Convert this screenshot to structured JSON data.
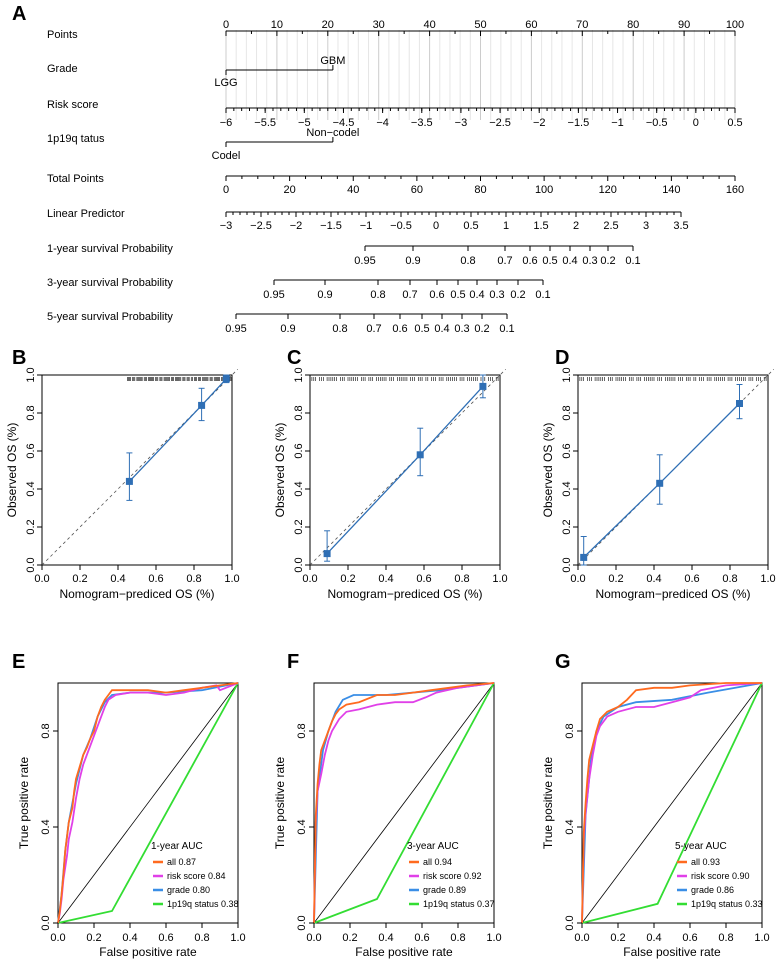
{
  "panel_labels": [
    "A",
    "B",
    "C",
    "D",
    "E",
    "F",
    "G"
  ],
  "chart_data": [
    {
      "type": "nomogram",
      "panel": "A",
      "rows": [
        {
          "label": "Points",
          "ticks": [
            "0",
            "10",
            "20",
            "30",
            "40",
            "50",
            "60",
            "70",
            "80",
            "90",
            "100"
          ]
        },
        {
          "label": "Grade",
          "levels": [
            "LGG",
            "GBM"
          ]
        },
        {
          "label": "Risk score",
          "ticks": [
            "-6",
            "-5.5",
            "-5",
            "-4.5",
            "-4",
            "-3.5",
            "-3",
            "-2.5",
            "-2",
            "-1.5",
            "-1",
            "-0.5",
            "0",
            "0.5"
          ]
        },
        {
          "label": "1p19q tatus",
          "levels": [
            "Codel",
            "Non−codel"
          ]
        },
        {
          "label": "Total Points",
          "ticks": [
            "0",
            "20",
            "40",
            "60",
            "80",
            "100",
            "120",
            "140",
            "160"
          ]
        },
        {
          "label": "Linear Predictor",
          "ticks": [
            "-3",
            "-2.5",
            "-2",
            "-1.5",
            "-1",
            "-0.5",
            "0",
            "0.5",
            "1",
            "1.5",
            "2",
            "2.5",
            "3",
            "3.5"
          ]
        },
        {
          "label": "1-year survival Probability",
          "ticks": [
            "0.95",
            "0.9",
            "0.8",
            "0.7",
            "0.6",
            "0.5",
            "0.4",
            "0.3",
            "0.2",
            "0.1"
          ]
        },
        {
          "label": "3-year survival Probability",
          "ticks": [
            "0.95",
            "0.9",
            "0.8",
            "0.7",
            "0.6",
            "0.5",
            "0.4",
            "0.3",
            "0.2",
            "0.1"
          ]
        },
        {
          "label": "5-year survival Probability",
          "ticks": [
            "0.95",
            "0.9",
            "0.8",
            "0.7",
            "0.6",
            "0.5",
            "0.4",
            "0.3",
            "0.2",
            "0.1"
          ]
        }
      ]
    },
    {
      "type": "calibration",
      "panel": "B",
      "xlabel": "Nomogram−prediced OS (%)",
      "ylabel": "Observed OS (%)",
      "xlim": [
        0,
        1
      ],
      "ylim": [
        0,
        1
      ],
      "ticks": [
        "0.0",
        "0.2",
        "0.4",
        "0.6",
        "0.8",
        "1.0"
      ],
      "points": [
        {
          "x": 0.46,
          "y": 0.44,
          "lo": 0.34,
          "hi": 0.59
        },
        {
          "x": 0.84,
          "y": 0.84,
          "lo": 0.76,
          "hi": 0.93
        },
        {
          "x": 0.97,
          "y": 0.98,
          "lo": 0.96,
          "hi": 1.0
        }
      ]
    },
    {
      "type": "calibration",
      "panel": "C",
      "xlabel": "Nomogram−prediced OS (%)",
      "ylabel": "Observed OS (%)",
      "xlim": [
        0,
        1
      ],
      "ylim": [
        0,
        1
      ],
      "ticks": [
        "0.0",
        "0.2",
        "0.4",
        "0.6",
        "0.8",
        "1.0"
      ],
      "points": [
        {
          "x": 0.09,
          "y": 0.06,
          "lo": 0.02,
          "hi": 0.18
        },
        {
          "x": 0.58,
          "y": 0.58,
          "lo": 0.47,
          "hi": 0.72
        },
        {
          "x": 0.91,
          "y": 0.94,
          "lo": 0.88,
          "hi": 1.0
        }
      ]
    },
    {
      "type": "calibration",
      "panel": "D",
      "xlabel": "Nomogram−prediced OS (%)",
      "ylabel": "Observed OS (%)",
      "xlim": [
        0,
        1
      ],
      "ylim": [
        0,
        1
      ],
      "ticks": [
        "0.0",
        "0.2",
        "0.4",
        "0.6",
        "0.8",
        "1.0"
      ],
      "points": [
        {
          "x": 0.03,
          "y": 0.04,
          "lo": 0.0,
          "hi": 0.15
        },
        {
          "x": 0.43,
          "y": 0.43,
          "lo": 0.32,
          "hi": 0.58
        },
        {
          "x": 0.85,
          "y": 0.85,
          "lo": 0.77,
          "hi": 0.95
        }
      ]
    },
    {
      "type": "roc",
      "panel": "E",
      "title": "1-year AUC",
      "xlabel": "False positive rate",
      "ylabel": "True positive rate",
      "xticks": [
        "0.0",
        "0.2",
        "0.4",
        "0.6",
        "0.8",
        "1.0"
      ],
      "yticks": [
        "0.0",
        "0.4",
        "0.8"
      ],
      "series": [
        {
          "name": "all",
          "auc": "0.87",
          "color": "#ff6a1f",
          "points": [
            [
              0,
              0
            ],
            [
              0.01,
              0.05
            ],
            [
              0.02,
              0.12
            ],
            [
              0.03,
              0.2
            ],
            [
              0.04,
              0.3
            ],
            [
              0.05,
              0.36
            ],
            [
              0.06,
              0.42
            ],
            [
              0.08,
              0.48
            ],
            [
              0.09,
              0.55
            ],
            [
              0.1,
              0.6
            ],
            [
              0.12,
              0.65
            ],
            [
              0.14,
              0.7
            ],
            [
              0.16,
              0.73
            ],
            [
              0.18,
              0.77
            ],
            [
              0.2,
              0.8
            ],
            [
              0.22,
              0.86
            ],
            [
              0.24,
              0.9
            ],
            [
              0.26,
              0.93
            ],
            [
              0.28,
              0.95
            ],
            [
              0.3,
              0.97
            ],
            [
              0.34,
              0.97
            ],
            [
              0.4,
              0.97
            ],
            [
              0.5,
              0.97
            ],
            [
              0.6,
              0.96
            ],
            [
              0.7,
              0.97
            ],
            [
              0.8,
              0.98
            ],
            [
              0.9,
              0.99
            ],
            [
              1,
              1
            ]
          ]
        },
        {
          "name": "risk score",
          "auc": "0.84",
          "color": "#e040e8",
          "points": [
            [
              0,
              0
            ],
            [
              0.01,
              0.04
            ],
            [
              0.02,
              0.1
            ],
            [
              0.03,
              0.18
            ],
            [
              0.05,
              0.28
            ],
            [
              0.06,
              0.35
            ],
            [
              0.08,
              0.42
            ],
            [
              0.1,
              0.52
            ],
            [
              0.12,
              0.6
            ],
            [
              0.14,
              0.66
            ],
            [
              0.16,
              0.7
            ],
            [
              0.18,
              0.74
            ],
            [
              0.2,
              0.78
            ],
            [
              0.22,
              0.82
            ],
            [
              0.24,
              0.86
            ],
            [
              0.26,
              0.9
            ],
            [
              0.28,
              0.93
            ],
            [
              0.32,
              0.95
            ],
            [
              0.4,
              0.96
            ],
            [
              0.5,
              0.96
            ],
            [
              0.6,
              0.95
            ],
            [
              0.7,
              0.96
            ],
            [
              0.8,
              0.98
            ],
            [
              0.88,
              0.99
            ],
            [
              0.9,
              0.97
            ],
            [
              1,
              1
            ]
          ]
        },
        {
          "name": "grade",
          "auc": "0.80",
          "color": "#3a8ee6",
          "points": [
            [
              0,
              0
            ],
            [
              0.02,
              0.12
            ],
            [
              0.04,
              0.3
            ],
            [
              0.06,
              0.42
            ],
            [
              0.1,
              0.58
            ],
            [
              0.14,
              0.7
            ],
            [
              0.18,
              0.77
            ],
            [
              0.22,
              0.86
            ],
            [
              0.26,
              0.92
            ],
            [
              0.3,
              0.95
            ],
            [
              0.4,
              0.96
            ],
            [
              0.6,
              0.96
            ],
            [
              0.8,
              0.97
            ],
            [
              1,
              1
            ]
          ]
        },
        {
          "name": "1p19q status",
          "auc": "0.38",
          "color": "#33dd33",
          "points": [
            [
              0,
              0
            ],
            [
              0.3,
              0.05
            ],
            [
              1,
              1
            ]
          ]
        }
      ]
    },
    {
      "type": "roc",
      "panel": "F",
      "title": "3-year AUC",
      "xlabel": "False positive rate",
      "ylabel": "True positive rate",
      "xticks": [
        "0.0",
        "0.2",
        "0.4",
        "0.6",
        "0.8",
        "1.0"
      ],
      "yticks": [
        "0.0",
        "0.4",
        "0.8"
      ],
      "series": [
        {
          "name": "all",
          "auc": "0.94",
          "color": "#ff6a1f",
          "points": [
            [
              0,
              0
            ],
            [
              0.01,
              0.45
            ],
            [
              0.02,
              0.58
            ],
            [
              0.03,
              0.66
            ],
            [
              0.04,
              0.72
            ],
            [
              0.06,
              0.76
            ],
            [
              0.08,
              0.8
            ],
            [
              0.1,
              0.84
            ],
            [
              0.12,
              0.87
            ],
            [
              0.14,
              0.89
            ],
            [
              0.18,
              0.91
            ],
            [
              0.25,
              0.92
            ],
            [
              0.35,
              0.95
            ],
            [
              0.45,
              0.95
            ],
            [
              0.55,
              0.96
            ],
            [
              0.65,
              0.97
            ],
            [
              0.75,
              0.98
            ],
            [
              0.85,
              0.99
            ],
            [
              1,
              1
            ]
          ]
        },
        {
          "name": "risk score",
          "auc": "0.92",
          "color": "#e040e8",
          "points": [
            [
              0,
              0
            ],
            [
              0.01,
              0.42
            ],
            [
              0.02,
              0.55
            ],
            [
              0.04,
              0.62
            ],
            [
              0.06,
              0.7
            ],
            [
              0.08,
              0.76
            ],
            [
              0.1,
              0.8
            ],
            [
              0.14,
              0.85
            ],
            [
              0.18,
              0.88
            ],
            [
              0.25,
              0.89
            ],
            [
              0.35,
              0.91
            ],
            [
              0.45,
              0.92
            ],
            [
              0.55,
              0.92
            ],
            [
              0.62,
              0.94
            ],
            [
              0.68,
              0.96
            ],
            [
              0.8,
              0.98
            ],
            [
              1,
              1
            ]
          ]
        },
        {
          "name": "grade",
          "auc": "0.89",
          "color": "#3a8ee6",
          "points": [
            [
              0,
              0
            ],
            [
              0.02,
              0.55
            ],
            [
              0.05,
              0.72
            ],
            [
              0.08,
              0.8
            ],
            [
              0.12,
              0.88
            ],
            [
              0.16,
              0.93
            ],
            [
              0.22,
              0.95
            ],
            [
              0.4,
              0.95
            ],
            [
              0.7,
              0.97
            ],
            [
              1,
              1
            ]
          ]
        },
        {
          "name": "1p19q status",
          "auc": "0.37",
          "color": "#33dd33",
          "points": [
            [
              0,
              0
            ],
            [
              0.35,
              0.1
            ],
            [
              1,
              1
            ]
          ]
        }
      ]
    },
    {
      "type": "roc",
      "panel": "G",
      "title": "5-year AUC",
      "xlabel": "False positive rate",
      "ylabel": "True positive rate",
      "xticks": [
        "0.0",
        "0.2",
        "0.4",
        "0.6",
        "0.8",
        "1.0"
      ],
      "yticks": [
        "0.0",
        "0.4",
        "0.8"
      ],
      "series": [
        {
          "name": "all",
          "auc": "0.93",
          "color": "#ff6a1f",
          "points": [
            [
              0,
              0
            ],
            [
              0.01,
              0.38
            ],
            [
              0.02,
              0.5
            ],
            [
              0.03,
              0.6
            ],
            [
              0.04,
              0.68
            ],
            [
              0.06,
              0.74
            ],
            [
              0.08,
              0.8
            ],
            [
              0.1,
              0.85
            ],
            [
              0.14,
              0.88
            ],
            [
              0.2,
              0.9
            ],
            [
              0.25,
              0.93
            ],
            [
              0.3,
              0.97
            ],
            [
              0.4,
              0.98
            ],
            [
              0.5,
              0.98
            ],
            [
              0.6,
              0.99
            ],
            [
              0.8,
              1
            ],
            [
              1,
              1
            ]
          ]
        },
        {
          "name": "risk score",
          "auc": "0.90",
          "color": "#e040e8",
          "points": [
            [
              0,
              0
            ],
            [
              0.01,
              0.35
            ],
            [
              0.02,
              0.46
            ],
            [
              0.04,
              0.6
            ],
            [
              0.06,
              0.7
            ],
            [
              0.08,
              0.78
            ],
            [
              0.1,
              0.82
            ],
            [
              0.14,
              0.86
            ],
            [
              0.2,
              0.88
            ],
            [
              0.3,
              0.9
            ],
            [
              0.4,
              0.9
            ],
            [
              0.5,
              0.92
            ],
            [
              0.6,
              0.94
            ],
            [
              0.66,
              0.97
            ],
            [
              0.8,
              0.99
            ],
            [
              1,
              1
            ]
          ]
        },
        {
          "name": "grade",
          "auc": "0.86",
          "color": "#3a8ee6",
          "points": [
            [
              0,
              0
            ],
            [
              0.02,
              0.45
            ],
            [
              0.05,
              0.68
            ],
            [
              0.08,
              0.8
            ],
            [
              0.12,
              0.86
            ],
            [
              0.2,
              0.9
            ],
            [
              0.3,
              0.92
            ],
            [
              0.5,
              0.93
            ],
            [
              0.7,
              0.96
            ],
            [
              1,
              1
            ]
          ]
        },
        {
          "name": "1p19q status",
          "auc": "0.33",
          "color": "#33dd33",
          "points": [
            [
              0,
              0
            ],
            [
              0.42,
              0.08
            ],
            [
              1,
              1
            ]
          ]
        }
      ]
    }
  ]
}
